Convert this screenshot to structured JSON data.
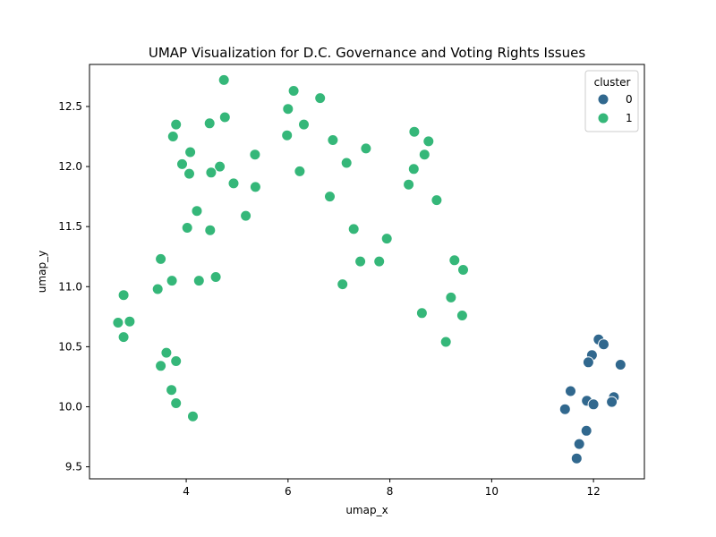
{
  "chart_data": {
    "type": "scatter",
    "title": "UMAP Visualization for D.C. Governance and Voting Rights Issues",
    "xlabel": "umap_x",
    "ylabel": "umap_y",
    "xlim": [
      2.1,
      13.0
    ],
    "ylim": [
      9.4,
      12.85
    ],
    "xticks": [
      4,
      6,
      8,
      10,
      12
    ],
    "yticks": [
      9.5,
      10.0,
      10.5,
      11.0,
      11.5,
      12.0,
      12.5
    ],
    "xtick_labels": [
      "4",
      "6",
      "8",
      "10",
      "12"
    ],
    "ytick_labels": [
      "9.5",
      "10.0",
      "10.5",
      "11.0",
      "11.5",
      "12.0",
      "12.5"
    ],
    "grid": false,
    "legend": {
      "title": "cluster",
      "placement": "top-right"
    },
    "series": [
      {
        "name": "0",
        "color": "#31688e",
        "points": [
          {
            "x": 12.1,
            "y": 10.56
          },
          {
            "x": 12.2,
            "y": 10.52
          },
          {
            "x": 11.97,
            "y": 10.43
          },
          {
            "x": 11.9,
            "y": 10.37
          },
          {
            "x": 12.53,
            "y": 10.35
          },
          {
            "x": 11.55,
            "y": 10.13
          },
          {
            "x": 12.4,
            "y": 10.08
          },
          {
            "x": 11.87,
            "y": 10.05
          },
          {
            "x": 12.36,
            "y": 10.04
          },
          {
            "x": 12.0,
            "y": 10.02
          },
          {
            "x": 11.44,
            "y": 9.98
          },
          {
            "x": 11.86,
            "y": 9.8
          },
          {
            "x": 11.72,
            "y": 9.69
          },
          {
            "x": 11.67,
            "y": 9.57
          }
        ]
      },
      {
        "name": "1",
        "color": "#35b779",
        "points": [
          {
            "x": 4.74,
            "y": 12.72
          },
          {
            "x": 6.11,
            "y": 12.63
          },
          {
            "x": 6.63,
            "y": 12.57
          },
          {
            "x": 6.0,
            "y": 12.48
          },
          {
            "x": 4.76,
            "y": 12.41
          },
          {
            "x": 4.46,
            "y": 12.36
          },
          {
            "x": 3.8,
            "y": 12.35
          },
          {
            "x": 6.31,
            "y": 12.35
          },
          {
            "x": 8.48,
            "y": 12.29
          },
          {
            "x": 5.98,
            "y": 12.26
          },
          {
            "x": 3.74,
            "y": 12.25
          },
          {
            "x": 6.88,
            "y": 12.22
          },
          {
            "x": 8.76,
            "y": 12.21
          },
          {
            "x": 7.53,
            "y": 12.15
          },
          {
            "x": 4.08,
            "y": 12.12
          },
          {
            "x": 8.68,
            "y": 12.1
          },
          {
            "x": 5.35,
            "y": 12.1
          },
          {
            "x": 7.15,
            "y": 12.03
          },
          {
            "x": 3.92,
            "y": 12.02
          },
          {
            "x": 4.66,
            "y": 12.0
          },
          {
            "x": 8.47,
            "y": 11.98
          },
          {
            "x": 6.23,
            "y": 11.96
          },
          {
            "x": 4.49,
            "y": 11.95
          },
          {
            "x": 4.06,
            "y": 11.94
          },
          {
            "x": 4.93,
            "y": 11.86
          },
          {
            "x": 8.37,
            "y": 11.85
          },
          {
            "x": 5.36,
            "y": 11.83
          },
          {
            "x": 6.82,
            "y": 11.75
          },
          {
            "x": 8.92,
            "y": 11.72
          },
          {
            "x": 4.21,
            "y": 11.63
          },
          {
            "x": 5.17,
            "y": 11.59
          },
          {
            "x": 4.02,
            "y": 11.49
          },
          {
            "x": 7.29,
            "y": 11.48
          },
          {
            "x": 4.47,
            "y": 11.47
          },
          {
            "x": 7.94,
            "y": 11.4
          },
          {
            "x": 3.5,
            "y": 11.23
          },
          {
            "x": 9.27,
            "y": 11.22
          },
          {
            "x": 7.42,
            "y": 11.21
          },
          {
            "x": 7.79,
            "y": 11.21
          },
          {
            "x": 9.44,
            "y": 11.14
          },
          {
            "x": 4.58,
            "y": 11.08
          },
          {
            "x": 3.72,
            "y": 11.05
          },
          {
            "x": 4.25,
            "y": 11.05
          },
          {
            "x": 7.07,
            "y": 11.02
          },
          {
            "x": 3.44,
            "y": 10.98
          },
          {
            "x": 2.77,
            "y": 10.93
          },
          {
            "x": 9.2,
            "y": 10.91
          },
          {
            "x": 8.63,
            "y": 10.78
          },
          {
            "x": 9.42,
            "y": 10.76
          },
          {
            "x": 2.66,
            "y": 10.7
          },
          {
            "x": 2.89,
            "y": 10.71
          },
          {
            "x": 2.77,
            "y": 10.58
          },
          {
            "x": 9.1,
            "y": 10.54
          },
          {
            "x": 3.61,
            "y": 10.45
          },
          {
            "x": 3.8,
            "y": 10.38
          },
          {
            "x": 3.5,
            "y": 10.34
          },
          {
            "x": 3.71,
            "y": 10.14
          },
          {
            "x": 3.8,
            "y": 10.03
          },
          {
            "x": 4.13,
            "y": 9.92
          }
        ]
      }
    ]
  }
}
